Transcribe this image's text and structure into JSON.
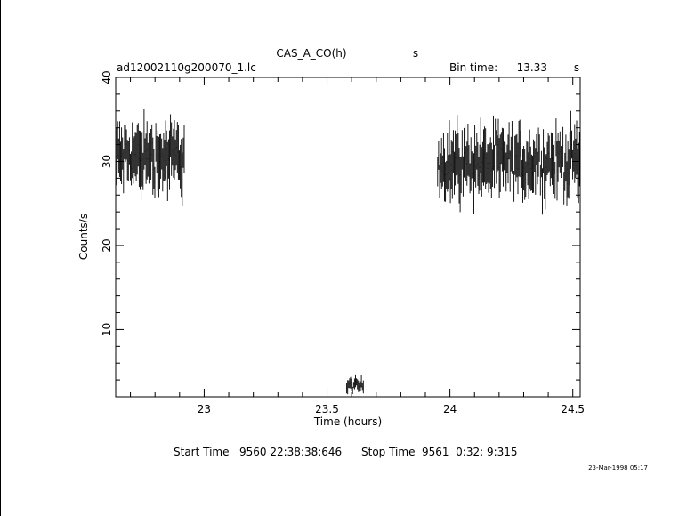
{
  "chart_data": {
    "type": "line",
    "title": "CAS_A_CO(h)",
    "title_unit": "s",
    "file_label": "ad12002110g200070_1.lc",
    "bin_time_label": "Bin time:",
    "bin_time_value": "13.33",
    "bin_time_unit": "s",
    "xlabel": "Time (hours)",
    "ylabel": "Counts/s",
    "xlim": [
      22.64,
      24.53
    ],
    "ylim": [
      2,
      40
    ],
    "x_ticks": [
      "23",
      "23.5",
      "24",
      "24.5"
    ],
    "x_tick_values": [
      23,
      23.5,
      24,
      24.5
    ],
    "y_ticks": [
      "10",
      "20",
      "30",
      "40"
    ],
    "y_tick_values": [
      10,
      20,
      30,
      40
    ],
    "grid": false,
    "series": [
      {
        "segments": [
          {
            "x_start": 22.64,
            "x_end": 22.92,
            "mean": 30.5,
            "spread": 2.6
          },
          {
            "x_start": 23.58,
            "x_end": 23.65,
            "mean": 3.3,
            "spread": 0.6
          },
          {
            "x_start": 23.95,
            "x_end": 24.53,
            "mean": 29.9,
            "spread": 2.6
          }
        ]
      }
    ],
    "start_time_label": "Start Time",
    "start_time_value": "9560 22:38:38:646",
    "stop_time_label": "Stop Time",
    "stop_time_value": "9561  0:32: 9:315",
    "footer_date": "23-Mar-1998 05:17"
  }
}
